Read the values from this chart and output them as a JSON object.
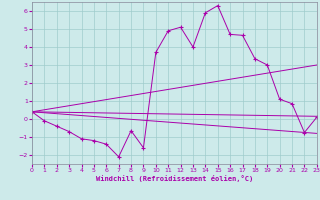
{
  "xlabel": "Windchill (Refroidissement éolien,°C)",
  "xlim": [
    0,
    23
  ],
  "ylim": [
    -2.5,
    6.5
  ],
  "yticks": [
    -2,
    -1,
    0,
    1,
    2,
    3,
    4,
    5,
    6
  ],
  "xticks": [
    0,
    1,
    2,
    3,
    4,
    5,
    6,
    7,
    8,
    9,
    10,
    11,
    12,
    13,
    14,
    15,
    16,
    17,
    18,
    19,
    20,
    21,
    22,
    23
  ],
  "background_color": "#cdeaea",
  "line_color": "#aa00aa",
  "grid_color": "#a0cccc",
  "lines": {
    "line1": {
      "x": [
        0,
        1,
        2,
        3,
        4,
        5,
        6,
        7,
        8,
        9,
        10,
        11,
        12,
        13,
        14,
        15,
        16,
        17,
        18,
        19,
        20,
        21,
        22,
        23
      ],
      "y": [
        0.4,
        -0.1,
        -0.4,
        -0.7,
        -1.1,
        -1.2,
        -1.4,
        -2.1,
        -0.65,
        -1.6,
        3.7,
        4.9,
        5.1,
        4.0,
        5.9,
        6.3,
        4.7,
        4.65,
        3.35,
        3.0,
        1.1,
        0.85,
        -0.75,
        0.1
      ]
    },
    "line2": {
      "x": [
        0,
        23
      ],
      "y": [
        0.4,
        3.0
      ]
    },
    "line3": {
      "x": [
        0,
        23
      ],
      "y": [
        0.4,
        0.15
      ]
    },
    "line4": {
      "x": [
        0,
        23
      ],
      "y": [
        0.4,
        -0.8
      ]
    }
  }
}
